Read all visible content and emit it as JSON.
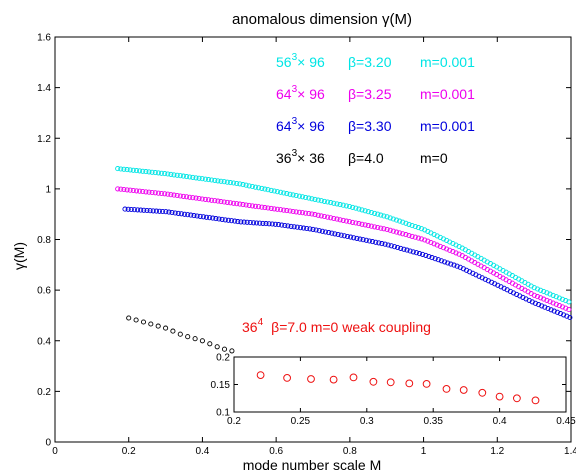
{
  "chart_data": [
    {
      "type": "scatter",
      "title": "anomalous dimension  γ(M)",
      "xlabel": "mode number scale M",
      "ylabel": "γ(M)",
      "xlim": [
        0,
        1.4
      ],
      "ylim": [
        0,
        1.6
      ],
      "xticks": [
        "0",
        "0.2",
        "0.4",
        "0.6",
        "0.8",
        "1",
        "1.2",
        "1.4"
      ],
      "yticks": [
        "0",
        "0.2",
        "0.4",
        "0.6",
        "0.8",
        "1",
        "1.2",
        "1.4",
        "1.6"
      ],
      "grid": false,
      "marker": "open-circle",
      "series": [
        {
          "id": "cyan",
          "color": "#00e5e5",
          "vol": "56",
          "exp": "3",
          "rest": "× 96",
          "beta": "β=3.20",
          "mass": "m=0.001",
          "xrange": [
            0.17,
            1.4
          ],
          "x": [
            0.17,
            0.3,
            0.4,
            0.5,
            0.6,
            0.7,
            0.8,
            0.9,
            1.0,
            1.1,
            1.2,
            1.3,
            1.4
          ],
          "y": [
            1.08,
            1.06,
            1.04,
            1.02,
            0.99,
            0.96,
            0.93,
            0.89,
            0.84,
            0.77,
            0.69,
            0.61,
            0.55
          ]
        },
        {
          "id": "magenta",
          "color": "#ee00ee",
          "vol": "64",
          "exp": "3",
          "rest": "× 96",
          "beta": "β=3.25",
          "mass": "m=0.001",
          "xrange": [
            0.17,
            1.4
          ],
          "x": [
            0.17,
            0.3,
            0.4,
            0.5,
            0.6,
            0.7,
            0.8,
            0.9,
            1.0,
            1.1,
            1.2,
            1.3,
            1.4
          ],
          "y": [
            1.0,
            0.98,
            0.96,
            0.94,
            0.92,
            0.9,
            0.87,
            0.84,
            0.8,
            0.74,
            0.66,
            0.58,
            0.52
          ]
        },
        {
          "id": "blue",
          "color": "#0000dd",
          "vol": "64",
          "exp": "3",
          "rest": "× 96",
          "beta": "β=3.30",
          "mass": "m=0.001",
          "xrange": [
            0.19,
            1.4
          ],
          "x": [
            0.19,
            0.3,
            0.4,
            0.5,
            0.6,
            0.7,
            0.8,
            0.9,
            1.0,
            1.1,
            1.2,
            1.3,
            1.4
          ],
          "y": [
            0.92,
            0.91,
            0.89,
            0.87,
            0.86,
            0.84,
            0.81,
            0.78,
            0.74,
            0.69,
            0.62,
            0.55,
            0.49
          ]
        },
        {
          "id": "black",
          "color": "#000000",
          "vol": "36",
          "exp": "3",
          "rest": "× 36",
          "beta": "β=4.0",
          "mass": "m=0",
          "xrange": [
            0.2,
            0.48
          ],
          "x": [
            0.2,
            0.25,
            0.3,
            0.35,
            0.4,
            0.45,
            0.48
          ],
          "y": [
            0.49,
            0.47,
            0.45,
            0.42,
            0.4,
            0.37,
            0.36
          ]
        }
      ]
    },
    {
      "type": "scatter",
      "xlim": [
        0.2,
        0.45
      ],
      "ylim": [
        0.1,
        0.2
      ],
      "xticks": [
        "0.2",
        "0.25",
        "0.3",
        "0.35",
        "0.4",
        "0.45"
      ],
      "yticks": [
        "0.1",
        "0.15",
        "0.2"
      ],
      "annotation": {
        "vol": "36",
        "exp": "4",
        "text": "β=7.0   m=0  weak coupling",
        "color": "#ee1111"
      },
      "series": [
        {
          "id": "red",
          "color": "#ee1111",
          "x": [
            0.22,
            0.24,
            0.258,
            0.275,
            0.29,
            0.305,
            0.318,
            0.332,
            0.345,
            0.36,
            0.373,
            0.387,
            0.4,
            0.413,
            0.427
          ],
          "y": [
            0.167,
            0.162,
            0.16,
            0.159,
            0.163,
            0.155,
            0.154,
            0.152,
            0.151,
            0.142,
            0.14,
            0.135,
            0.128,
            0.125,
            0.121
          ]
        }
      ]
    }
  ]
}
